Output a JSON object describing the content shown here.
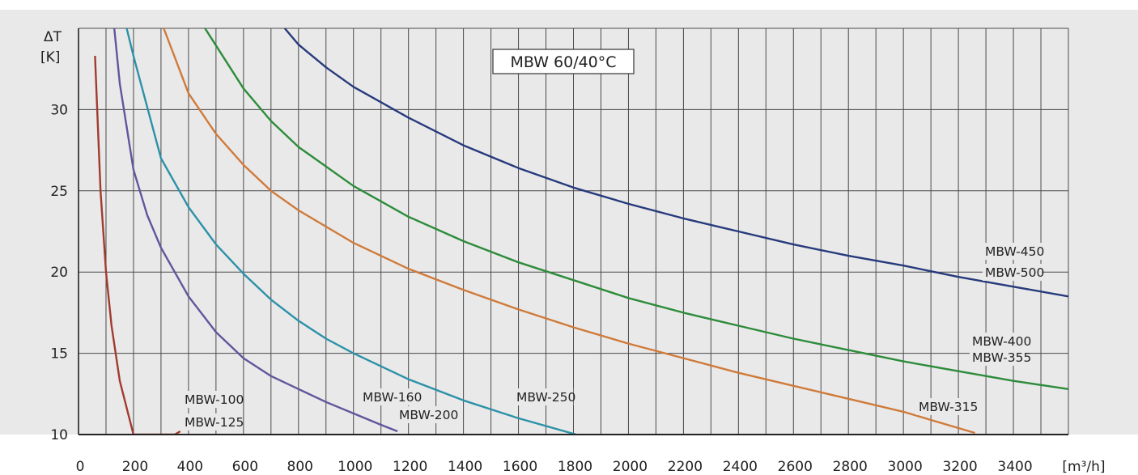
{
  "chart_data": {
    "type": "line",
    "title": "MBW 60/40°C",
    "xlabel": "[m³/h]",
    "ylabel_line1": "ΔT",
    "ylabel_line2": "[K]",
    "xlim": [
      0,
      3600
    ],
    "ylim": [
      10,
      35
    ],
    "x_ticks": [
      0,
      200,
      400,
      600,
      800,
      1000,
      1200,
      1400,
      1600,
      1800,
      2000,
      2200,
      2400,
      2600,
      2800,
      3000,
      3200,
      3400
    ],
    "y_ticks": [
      10,
      15,
      20,
      25,
      30
    ],
    "grid": true,
    "series": [
      {
        "label_lines": [
          "MBW-100",
          "MBW-125"
        ],
        "color": "#a23b2f",
        "x": [
          60,
          80,
          100,
          120,
          150,
          200,
          250,
          300,
          350,
          370
        ],
        "y": [
          33.3,
          25.0,
          20.0,
          16.7,
          13.3,
          10.0,
          10.0,
          10.0,
          10.0,
          10.2
        ]
      },
      {
        "label_lines": [
          "MBW-160",
          "MBW-200"
        ],
        "color": "#63559c",
        "x": [
          130,
          150,
          200,
          250,
          300,
          400,
          500,
          600,
          700,
          800,
          900,
          1000,
          1100,
          1160
        ],
        "y": [
          35.0,
          31.6,
          26.3,
          23.5,
          21.5,
          18.5,
          16.3,
          14.7,
          13.6,
          12.8,
          12.0,
          11.3,
          10.6,
          10.2
        ]
      },
      {
        "label_lines": [],
        "color": "#2c91a8",
        "x": [
          175,
          200,
          300,
          400,
          500,
          600,
          700,
          800,
          900,
          1000,
          1200,
          1400,
          1600,
          1810
        ],
        "y": [
          35.0,
          33.3,
          27.0,
          24.0,
          21.7,
          19.9,
          18.3,
          17.0,
          15.9,
          15.0,
          13.4,
          12.1,
          11.0,
          10.0
        ]
      },
      {
        "label_lines": [
          "MBW-250"
        ],
        "color": "#d07a3a",
        "x": [
          310,
          400,
          500,
          600,
          700,
          800,
          1000,
          1200,
          1400,
          1600,
          1800,
          2000,
          2200,
          2400,
          2600,
          2800,
          3000,
          3260
        ],
        "y": [
          35.0,
          31.0,
          28.5,
          26.6,
          25.0,
          23.8,
          21.8,
          20.2,
          18.9,
          17.7,
          16.6,
          15.6,
          14.7,
          13.8,
          13.0,
          12.2,
          11.4,
          10.1
        ]
      },
      {
        "label_lines": [
          "MBW-400",
          "MBW-355"
        ],
        "color": "#2d8c3a",
        "x": [
          460,
          600,
          700,
          800,
          1000,
          1200,
          1400,
          1600,
          1800,
          2000,
          2200,
          2400,
          2600,
          2800,
          3000,
          3200,
          3400,
          3600
        ],
        "y": [
          35.0,
          31.3,
          29.3,
          27.7,
          25.3,
          23.4,
          21.9,
          20.6,
          19.5,
          18.4,
          17.5,
          16.7,
          15.9,
          15.2,
          14.5,
          13.9,
          13.3,
          12.8
        ]
      },
      {
        "label_lines": [
          "MBW-450",
          "MBW-500"
        ],
        "color": "#263a7c",
        "x": [
          750,
          800,
          900,
          1000,
          1200,
          1400,
          1600,
          1800,
          2000,
          2200,
          2400,
          2600,
          2800,
          3000,
          3200,
          3400,
          3600
        ],
        "y": [
          35.0,
          34.0,
          32.6,
          31.4,
          29.5,
          27.8,
          26.4,
          25.2,
          24.2,
          23.3,
          22.5,
          21.7,
          21.0,
          20.4,
          19.7,
          19.1,
          18.5
        ]
      }
    ],
    "extra_labels": [
      "MBW-315"
    ]
  }
}
